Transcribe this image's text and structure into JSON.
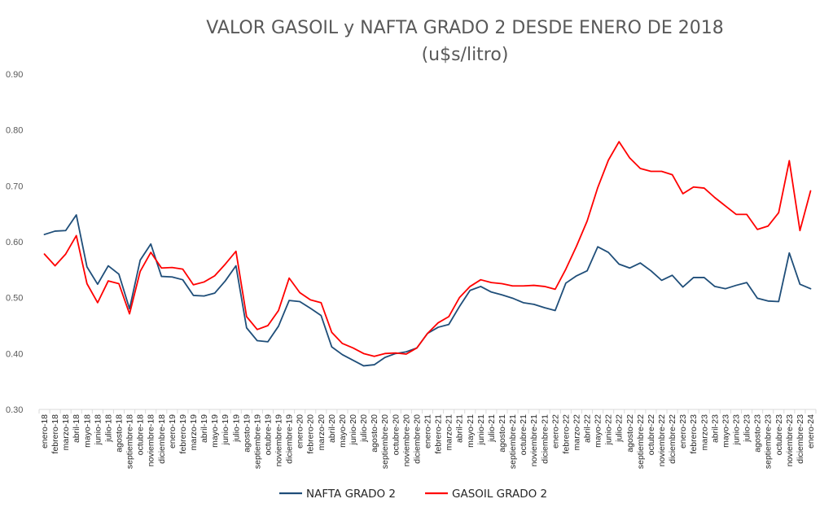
{
  "chart_data": {
    "type": "line",
    "title": "VALOR GASOIL y NAFTA GRADO 2 DESDE ENERO DE 2018",
    "subtitle": "(u$s/litro)",
    "xlabel": "",
    "ylabel": "",
    "ylim": [
      0.3,
      0.9
    ],
    "yticks": [
      0.3,
      0.4,
      0.5,
      0.6,
      0.7,
      0.8,
      0.9
    ],
    "ytick_labels": [
      "0.30",
      "0.40",
      "0.50",
      "0.60",
      "0.70",
      "0.80",
      "0.90"
    ],
    "grid": false,
    "legend_position": "bottom",
    "categories": [
      "enero-18",
      "febrero-18",
      "marzo-18",
      "abril-18",
      "mayo-18",
      "junio-18",
      "julio-18",
      "agosto-18",
      "septiembre-18",
      "octubre-18",
      "noviembre-18",
      "diciembre-18",
      "enero-19",
      "febrero-19",
      "marzo-19",
      "abril-19",
      "mayo-19",
      "junio-19",
      "julio-19",
      "agosto-19",
      "septiembre-19",
      "octubre-19",
      "noviembre-19",
      "diciembre-19",
      "enero-20",
      "febrero-20",
      "marzo-20",
      "abril-20",
      "mayo-20",
      "junio-20",
      "julio-20",
      "agosto-20",
      "septiembre-20",
      "octubre-20",
      "noviembre-20",
      "diciembre-20",
      "enero-21",
      "febrero-21",
      "marzo-21",
      "abril-21",
      "mayo-21",
      "junio-21",
      "julio-21",
      "agosto-21",
      "septiembre-21",
      "octubre-21",
      "noviembre-21",
      "diciembre-21",
      "enero-22",
      "febrero-22",
      "marzo-22",
      "abril-22",
      "mayo-22",
      "junio-22",
      "julio-22",
      "agosto-22",
      "septiembre-22",
      "octubre-22",
      "noviembre-22",
      "diciembre-22",
      "enero-23",
      "febrero-23",
      "marzo-23",
      "abril-23",
      "mayo-23",
      "junio-23",
      "julio-23",
      "agosto-23",
      "septiembre-23",
      "octubre-23",
      "noviembre-23",
      "diciembre-23",
      "enero-24"
    ],
    "series": [
      {
        "name": "NAFTA GRADO 2",
        "color": "#1f4e79",
        "values": [
          0.613,
          0.619,
          0.62,
          0.648,
          0.555,
          0.524,
          0.557,
          0.542,
          0.48,
          0.567,
          0.596,
          0.538,
          0.537,
          0.532,
          0.504,
          0.503,
          0.508,
          0.53,
          0.557,
          0.446,
          0.423,
          0.421,
          0.449,
          0.495,
          0.493,
          0.481,
          0.468,
          0.412,
          0.398,
          0.388,
          0.378,
          0.38,
          0.393,
          0.4,
          0.403,
          0.41,
          0.436,
          0.447,
          0.452,
          0.484,
          0.513,
          0.52,
          0.51,
          0.505,
          0.499,
          0.491,
          0.488,
          0.482,
          0.477,
          0.526,
          0.539,
          0.548,
          0.591,
          0.581,
          0.56,
          0.553,
          0.562,
          0.548,
          0.531,
          0.54,
          0.519,
          0.536,
          0.536,
          0.52,
          0.516,
          0.522,
          0.527,
          0.499,
          0.494,
          0.493,
          0.58,
          0.524,
          0.516
        ]
      },
      {
        "name": "GASOIL GRADO 2",
        "color": "#ff0000",
        "values": [
          0.578,
          0.557,
          0.578,
          0.611,
          0.525,
          0.491,
          0.53,
          0.525,
          0.471,
          0.547,
          0.581,
          0.553,
          0.554,
          0.551,
          0.523,
          0.528,
          0.539,
          0.56,
          0.583,
          0.466,
          0.443,
          0.45,
          0.477,
          0.535,
          0.509,
          0.496,
          0.491,
          0.438,
          0.418,
          0.41,
          0.4,
          0.395,
          0.4,
          0.401,
          0.399,
          0.41,
          0.436,
          0.455,
          0.466,
          0.5,
          0.52,
          0.532,
          0.527,
          0.525,
          0.521,
          0.521,
          0.522,
          0.52,
          0.515,
          0.551,
          0.592,
          0.637,
          0.697,
          0.746,
          0.779,
          0.75,
          0.731,
          0.726,
          0.726,
          0.72,
          0.686,
          0.698,
          0.696,
          0.679,
          0.664,
          0.649,
          0.649,
          0.622,
          0.628,
          0.652,
          0.745,
          0.62,
          0.691
        ]
      }
    ]
  }
}
